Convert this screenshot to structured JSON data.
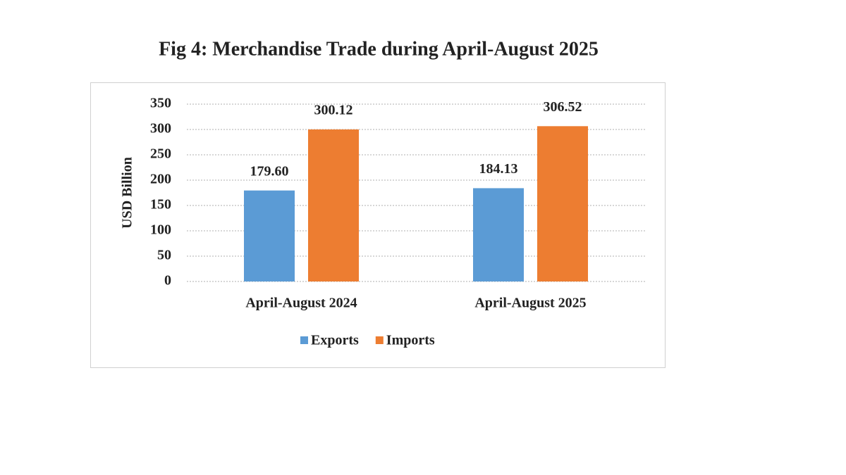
{
  "chart_data": {
    "type": "bar",
    "title": "Fig 4: Merchandise Trade during April-August 2025",
    "ylabel": "USD Billion",
    "categories": [
      "April-August 2024",
      "April-August 2025"
    ],
    "series": [
      {
        "name": "Exports",
        "color": "#5b9bd5",
        "values": [
          179.6,
          184.13
        ],
        "value_labels": [
          "179.60",
          "184.13"
        ]
      },
      {
        "name": "Imports",
        "color": "#ed7d31",
        "values": [
          300.12,
          306.52
        ],
        "value_labels": [
          "300.12",
          "306.52"
        ]
      }
    ],
    "ylim": [
      0,
      350
    ],
    "yticks": [
      0,
      50,
      100,
      150,
      200,
      250,
      300,
      350
    ],
    "grid": true,
    "legend": "bottom"
  }
}
